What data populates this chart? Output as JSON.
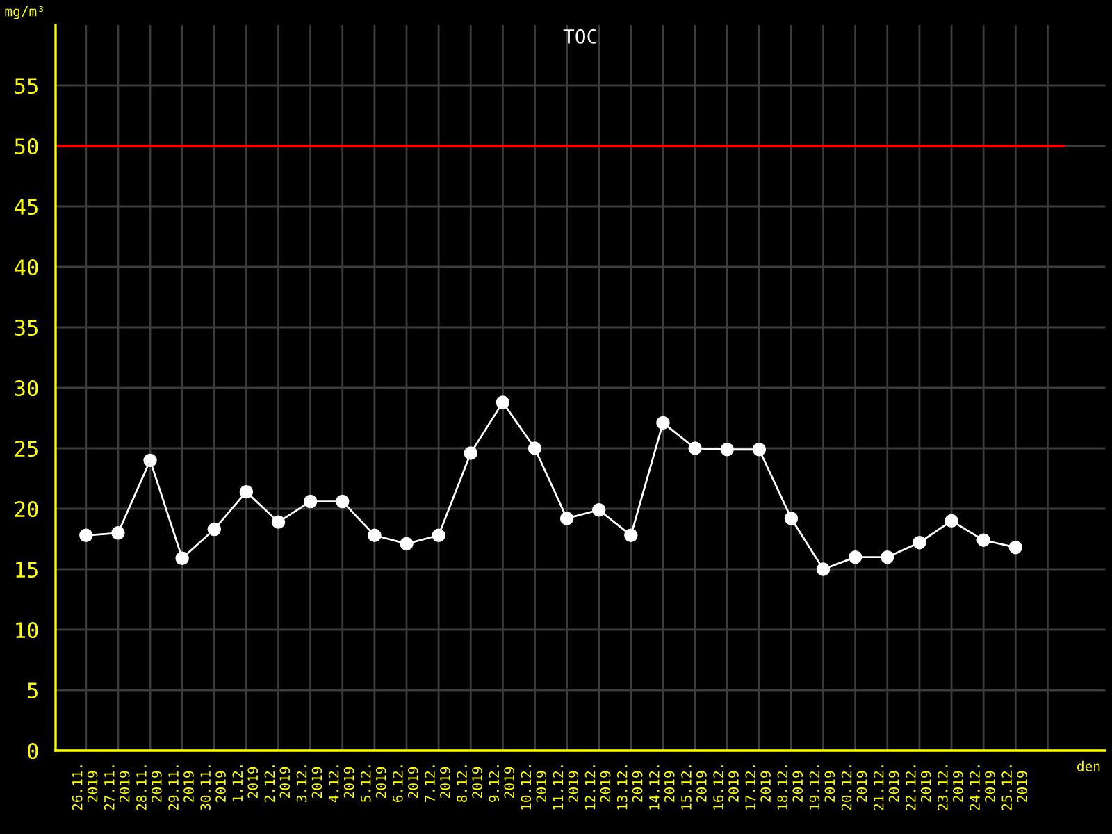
{
  "chart_data": {
    "type": "line",
    "title": "TOC",
    "ylabel": "mg/m³",
    "xlabel": "den",
    "categories": [
      "26.11.\n2019",
      "27.11.\n2019",
      "28.11.\n2019",
      "29.11.\n2019",
      "30.11.\n2019",
      "1.12.\n2019",
      "2.12.\n2019",
      "3.12.\n2019",
      "4.12.\n2019",
      "5.12.\n2019",
      "6.12.\n2019",
      "7.12.\n2019",
      "8.12.\n2019",
      "9.12.\n2019",
      "10.12.\n2019",
      "11.12.\n2019",
      "12.12.\n2019",
      "13.12.\n2019",
      "14.12.\n2019",
      "15.12.\n2019",
      "16.12.\n2019",
      "17.12.\n2019",
      "18.12.\n2019",
      "19.12.\n2019",
      "20.12.\n2019",
      "21.12.\n2019",
      "22.12.\n2019",
      "23.12.\n2019",
      "24.12.\n2019",
      "25.12.\n2019"
    ],
    "series": [
      {
        "color": "#ffffff",
        "values": [
          17.8,
          18.0,
          24.0,
          15.9,
          18.3,
          21.4,
          18.9,
          20.6,
          20.6,
          17.8,
          17.1,
          17.8,
          24.6,
          28.8,
          25.0,
          19.2,
          19.9,
          17.8,
          27.1,
          25.0,
          24.9,
          24.9,
          19.2,
          15.0,
          16.0,
          16.0,
          17.2,
          19.0,
          17.4,
          16.8
        ]
      }
    ],
    "ylim": [
      0,
      60
    ],
    "yticks": [
      0,
      5,
      10,
      15,
      20,
      25,
      30,
      35,
      40,
      45,
      50,
      55
    ],
    "ref_lines": [
      {
        "axis": "y",
        "value": 50,
        "color": "#ff0000",
        "line_style": "solid"
      }
    ],
    "grid": true,
    "marker": "circle",
    "line_style": "solid",
    "legend": false
  }
}
